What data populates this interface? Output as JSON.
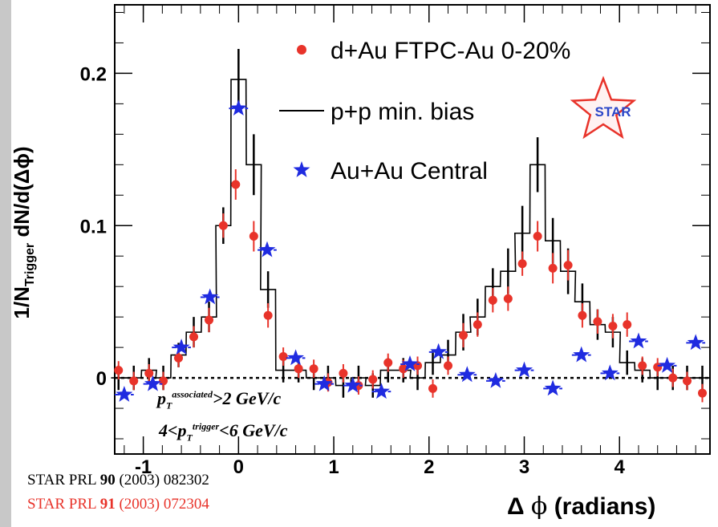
{
  "chart_data": {
    "type": "scatter",
    "title": "",
    "xlabel": "Δ φ (radians)",
    "ylabel": "1/N_Trigger dN/d(Δφ)",
    "ylabel_parts": {
      "prefix": "1/N",
      "sub": "Trigger",
      "suffix": " dN/d(Δϕ)"
    },
    "xlabel_parts": {
      "delta": "Δ",
      "phi": "ϕ",
      "rest": " (radians)"
    },
    "xlim": [
      -1.3,
      4.95
    ],
    "ylim": [
      -0.05,
      0.245
    ],
    "xticks": [
      -1,
      0,
      1,
      2,
      3,
      4
    ],
    "xtick_labels": [
      "-1",
      "0",
      "1",
      "2",
      "3",
      "4"
    ],
    "yticks": [
      0,
      0.1,
      0.2
    ],
    "ytick_labels": [
      "0",
      "0.1",
      "0.2"
    ],
    "zero_line": true,
    "legend": {
      "placement": "top-right",
      "entries": [
        {
          "label": "d+Au FTPC-Au 0-20%",
          "marker": "circle",
          "color": "#e8332a"
        },
        {
          "label": "p+p min. bias",
          "marker": "line",
          "color": "#000000"
        },
        {
          "label": "Au+Au Central",
          "marker": "star",
          "color": "#1f2be0"
        }
      ]
    },
    "series": [
      {
        "name": "p+p min. bias",
        "style": "histogram",
        "color": "#000000",
        "bin_width": 0.157,
        "bin_centers": [
          -1.26,
          -1.1,
          -0.94,
          -0.79,
          -0.63,
          -0.47,
          -0.31,
          -0.16,
          0.0,
          0.16,
          0.31,
          0.47,
          0.63,
          0.79,
          0.94,
          1.1,
          1.26,
          1.41,
          1.57,
          1.73,
          1.88,
          2.04,
          2.2,
          2.36,
          2.51,
          2.67,
          2.83,
          2.98,
          3.14,
          3.3,
          3.46,
          3.61,
          3.77,
          3.93,
          4.08,
          4.24,
          4.4,
          4.56,
          4.71,
          4.87
        ],
        "values": [
          0.0,
          0.0,
          0.005,
          0.0,
          0.015,
          0.03,
          0.04,
          0.1,
          0.196,
          0.14,
          0.058,
          0.005,
          0.005,
          0.0,
          0.0,
          -0.005,
          0.0,
          -0.005,
          0.005,
          0.005,
          0.0,
          0.01,
          0.015,
          0.03,
          0.04,
          0.06,
          0.07,
          0.095,
          0.14,
          0.09,
          0.07,
          0.05,
          0.035,
          0.03,
          0.01,
          0.005,
          0.0,
          0.0,
          0.0,
          0.0
        ],
        "errors": [
          0.008,
          0.008,
          0.008,
          0.008,
          0.008,
          0.01,
          0.01,
          0.012,
          0.02,
          0.02,
          0.012,
          0.008,
          0.008,
          0.008,
          0.008,
          0.008,
          0.008,
          0.008,
          0.008,
          0.008,
          0.008,
          0.008,
          0.01,
          0.012,
          0.012,
          0.012,
          0.015,
          0.018,
          0.018,
          0.015,
          0.015,
          0.012,
          0.01,
          0.01,
          0.008,
          0.008,
          0.008,
          0.008,
          0.008,
          0.008
        ]
      },
      {
        "name": "d+Au FTPC-Au 0-20%",
        "style": "points",
        "marker": "circle",
        "color": "#e8332a",
        "x": [
          -1.26,
          -1.1,
          -0.94,
          -0.79,
          -0.63,
          -0.47,
          -0.31,
          -0.16,
          -0.03,
          0.16,
          0.31,
          0.47,
          0.63,
          0.79,
          0.94,
          1.1,
          1.26,
          1.41,
          1.57,
          1.73,
          1.88,
          2.04,
          2.2,
          2.36,
          2.51,
          2.67,
          2.83,
          2.98,
          3.14,
          3.3,
          3.46,
          3.61,
          3.77,
          3.93,
          4.08,
          4.24,
          4.4,
          4.56,
          4.71,
          4.87
        ],
        "y": [
          0.005,
          -0.002,
          0.003,
          -0.002,
          0.013,
          0.027,
          0.038,
          0.1,
          0.127,
          0.093,
          0.041,
          0.014,
          0.006,
          0.006,
          -0.003,
          0.003,
          -0.005,
          -0.001,
          0.01,
          0.006,
          0.008,
          -0.007,
          0.008,
          0.028,
          0.035,
          0.051,
          0.052,
          0.075,
          0.093,
          0.072,
          0.074,
          0.041,
          0.037,
          0.034,
          0.035,
          0.008,
          0.007,
          0.0,
          -0.002,
          -0.01
        ],
        "errors": [
          0.006,
          0.006,
          0.006,
          0.006,
          0.006,
          0.007,
          0.008,
          0.008,
          0.01,
          0.01,
          0.008,
          0.006,
          0.006,
          0.006,
          0.006,
          0.006,
          0.006,
          0.006,
          0.006,
          0.006,
          0.006,
          0.006,
          0.006,
          0.008,
          0.008,
          0.008,
          0.008,
          0.008,
          0.01,
          0.01,
          0.01,
          0.008,
          0.008,
          0.008,
          0.008,
          0.006,
          0.006,
          0.006,
          0.006,
          0.006
        ]
      },
      {
        "name": "Au+Au Central",
        "style": "points",
        "marker": "star",
        "color": "#1f2be0",
        "x": [
          -1.2,
          -0.9,
          -0.6,
          -0.3,
          0.0,
          0.3,
          0.6,
          0.9,
          1.2,
          1.5,
          1.8,
          2.1,
          2.4,
          2.7,
          3.0,
          3.3,
          3.6,
          3.9,
          4.2,
          4.5,
          4.8
        ],
        "y": [
          -0.011,
          -0.004,
          0.02,
          0.053,
          0.177,
          0.084,
          0.013,
          -0.004,
          -0.005,
          -0.009,
          0.009,
          0.017,
          0.002,
          -0.002,
          0.005,
          -0.007,
          0.015,
          0.003,
          0.024,
          0.008,
          0.023
        ],
        "xerr": 0.1
      }
    ],
    "annotations": {
      "pt_assoc": {
        "base": "p",
        "sub": "T",
        "sup": "associated",
        "tail": ">2 GeV/c"
      },
      "pt_trig": {
        "head": "4<p",
        "sub": "T",
        "sup": "trigger",
        "tail": "<6 GeV/c"
      }
    },
    "logo_text": "STAR"
  },
  "references": {
    "ref1": {
      "pre": "STAR PRL ",
      "vol": "90",
      "post": " (2003) 082302"
    },
    "ref2": {
      "pre": "STAR PRL ",
      "vol": "91",
      "post": " (2003) 072304"
    }
  }
}
